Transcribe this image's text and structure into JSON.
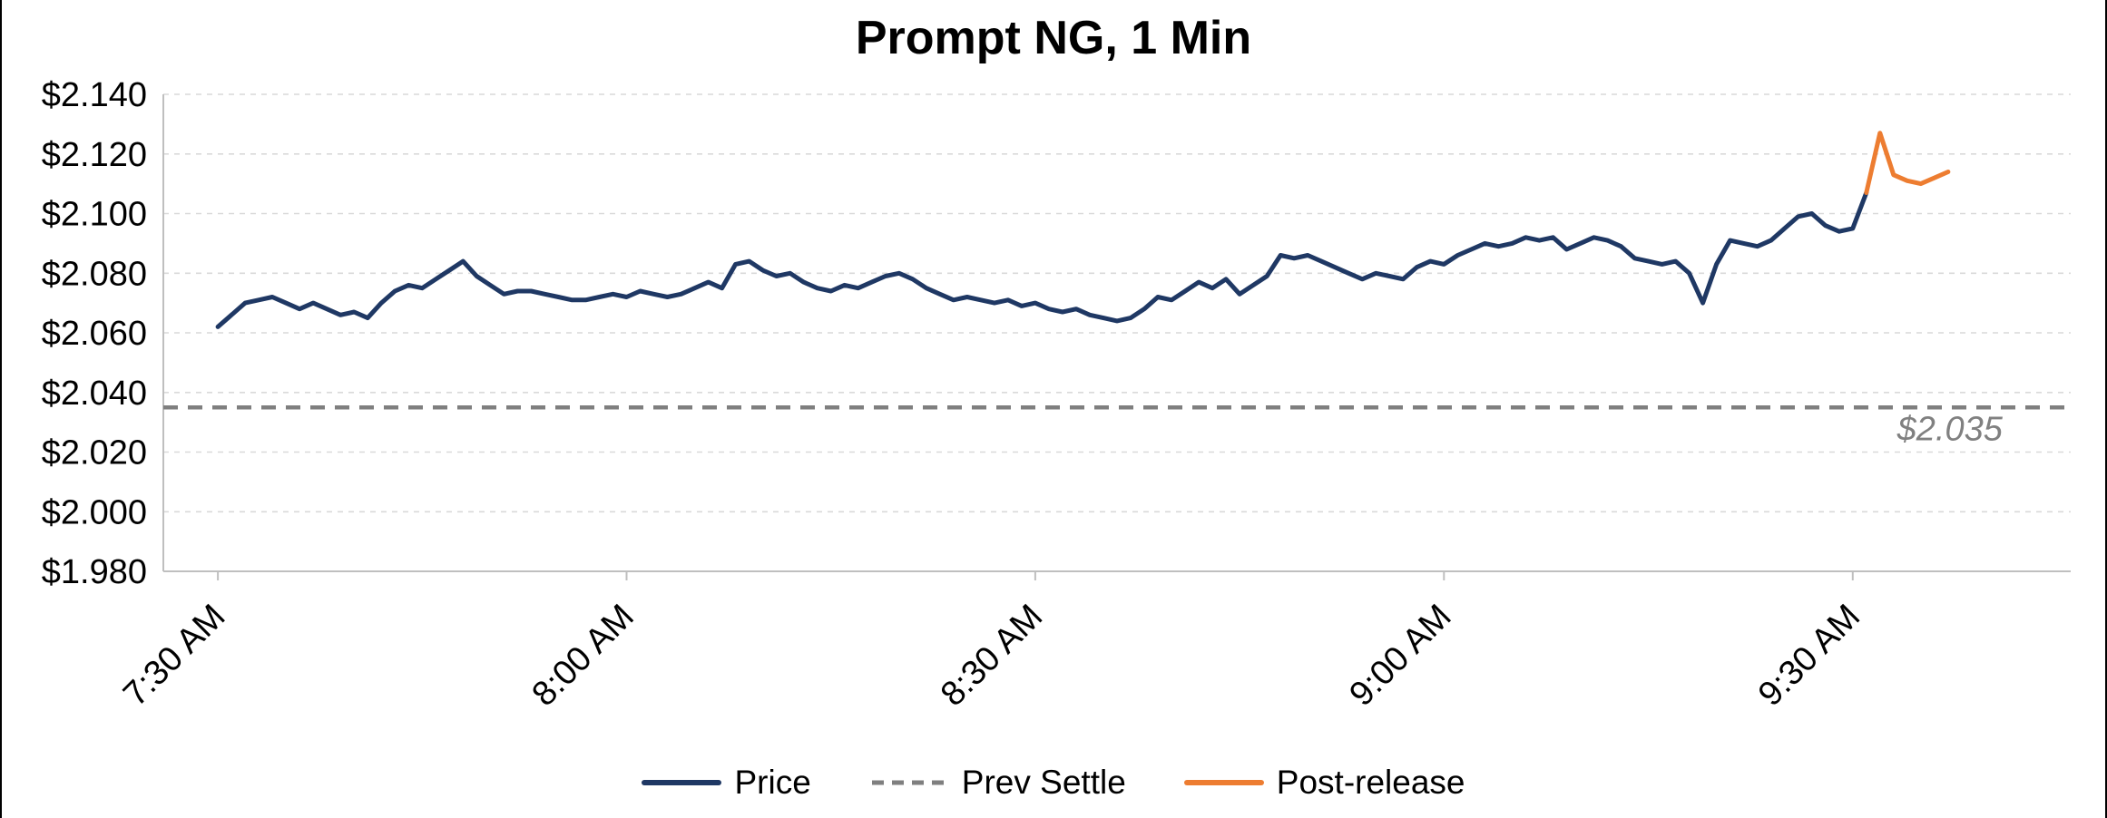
{
  "page": {
    "background": "#ffffff",
    "border_color": "#000000"
  },
  "chart": {
    "title": "Prompt NG, 1 Min",
    "legend": [
      {
        "label": "Price",
        "color": "#1f3864",
        "dash": ""
      },
      {
        "label": "Prev Settle",
        "color": "#7f7f7f",
        "dash": "13 9"
      },
      {
        "label": "Post-release",
        "color": "#ed7d31",
        "dash": ""
      }
    ],
    "annotation": {
      "text": "$2.035",
      "color": "#808080"
    }
  },
  "chart_data": {
    "type": "line",
    "title": "Prompt NG, 1 Min",
    "x_axis": {
      "label": "",
      "start_time": "7:30 AM",
      "interval": "1 min",
      "tick_labels": [
        "7:30 AM",
        "8:00 AM",
        "8:30 AM",
        "9:00 AM",
        "9:30 AM"
      ],
      "tick_minutes": [
        0,
        30,
        60,
        90,
        120
      ],
      "domain_minutes": [
        -4,
        136
      ]
    },
    "y_axis": {
      "label": "",
      "range": [
        1.98,
        2.14
      ],
      "ticks": [
        1.98,
        2.0,
        2.02,
        2.04,
        2.06,
        2.08,
        2.1,
        2.12,
        2.14
      ],
      "tick_labels": [
        "$1.980",
        "$2.000",
        "$2.020",
        "$2.040",
        "$2.060",
        "$2.080",
        "$2.100",
        "$2.120",
        "$2.140"
      ]
    },
    "grid": "horizontal-dashed",
    "series": [
      {
        "name": "Price",
        "kind": "line",
        "color": "#1f3864",
        "width": 5,
        "start_minute": 0,
        "interval_min": 1,
        "values": [
          2.062,
          2.066,
          2.07,
          2.071,
          2.072,
          2.07,
          2.068,
          2.07,
          2.068,
          2.066,
          2.067,
          2.065,
          2.07,
          2.074,
          2.076,
          2.075,
          2.078,
          2.081,
          2.084,
          2.079,
          2.076,
          2.073,
          2.074,
          2.074,
          2.073,
          2.072,
          2.071,
          2.071,
          2.072,
          2.073,
          2.072,
          2.074,
          2.073,
          2.072,
          2.073,
          2.075,
          2.077,
          2.075,
          2.083,
          2.084,
          2.081,
          2.079,
          2.08,
          2.077,
          2.075,
          2.074,
          2.076,
          2.075,
          2.077,
          2.079,
          2.08,
          2.078,
          2.075,
          2.073,
          2.071,
          2.072,
          2.071,
          2.07,
          2.071,
          2.069,
          2.07,
          2.068,
          2.067,
          2.068,
          2.066,
          2.065,
          2.064,
          2.065,
          2.068,
          2.072,
          2.071,
          2.074,
          2.077,
          2.075,
          2.078,
          2.073,
          2.076,
          2.079,
          2.086,
          2.085,
          2.086,
          2.084,
          2.082,
          2.08,
          2.078,
          2.08,
          2.079,
          2.078,
          2.082,
          2.084,
          2.083,
          2.086,
          2.088,
          2.09,
          2.089,
          2.09,
          2.092,
          2.091,
          2.092,
          2.088,
          2.09,
          2.092,
          2.091,
          2.089,
          2.085,
          2.084,
          2.083,
          2.084,
          2.08,
          2.07,
          2.083,
          2.091,
          2.09,
          2.089,
          2.091,
          2.095,
          2.099,
          2.1,
          2.096,
          2.094,
          2.095,
          2.107
        ]
      },
      {
        "name": "Post-release",
        "kind": "line",
        "color": "#ed7d31",
        "width": 5,
        "start_minute": 121,
        "interval_min": 1,
        "values": [
          2.107,
          2.127,
          2.113,
          2.111,
          2.11,
          2.112,
          2.114
        ]
      },
      {
        "name": "Prev Settle",
        "kind": "hline",
        "color": "#7f7f7f",
        "width": 4.5,
        "dash": "16 11",
        "value": 2.035
      }
    ],
    "annotation": {
      "text": "$2.035",
      "x_minute": 131,
      "y": 2.024,
      "color": "#808080",
      "style": "italic"
    }
  }
}
